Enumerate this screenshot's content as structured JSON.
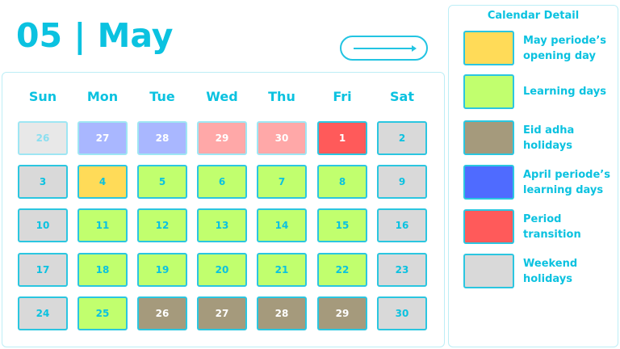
{
  "header": {
    "title": "05 | May",
    "next_button_icon": "arrow-right-icon"
  },
  "weekdays": [
    "Sun",
    "Mon",
    "Tue",
    "Wed",
    "Thu",
    "Fri",
    "Sat"
  ],
  "types": {
    "other_weekend": {
      "bg": "#e8e8e8",
      "fg": "#8adff0",
      "border": "#9ee6f3"
    },
    "april": {
      "bg": "#a9b7ff",
      "fg": "#ffffff",
      "border": "#9ee6f3"
    },
    "transition_prev": {
      "bg": "#ffa8a8",
      "fg": "#ffffff",
      "border": "#9ee6f3"
    },
    "transition": {
      "bg": "#ff5a5a",
      "fg": "#ffffff",
      "border": "#2bc6e0"
    },
    "weekend": {
      "bg": "#d9d9d9",
      "fg": "#0bc2e0",
      "border": "#2bc6e0"
    },
    "opening": {
      "bg": "#ffdb58",
      "fg": "#0bc2e0",
      "border": "#2bc6e0"
    },
    "learning": {
      "bg": "#c1ff6e",
      "fg": "#0bc2e0",
      "border": "#2bc6e0"
    },
    "eid": {
      "bg": "#a59a7c",
      "fg": "#ffffff",
      "border": "#2bc6e0"
    }
  },
  "weeks": [
    [
      {
        "d": "26",
        "t": "other_weekend"
      },
      {
        "d": "27",
        "t": "april"
      },
      {
        "d": "28",
        "t": "april"
      },
      {
        "d": "29",
        "t": "transition_prev"
      },
      {
        "d": "30",
        "t": "transition_prev"
      },
      {
        "d": "1",
        "t": "transition"
      },
      {
        "d": "2",
        "t": "weekend"
      }
    ],
    [
      {
        "d": "3",
        "t": "weekend"
      },
      {
        "d": "4",
        "t": "opening"
      },
      {
        "d": "5",
        "t": "learning"
      },
      {
        "d": "6",
        "t": "learning"
      },
      {
        "d": "7",
        "t": "learning"
      },
      {
        "d": "8",
        "t": "learning"
      },
      {
        "d": "9",
        "t": "weekend"
      }
    ],
    [
      {
        "d": "10",
        "t": "weekend"
      },
      {
        "d": "11",
        "t": "learning"
      },
      {
        "d": "12",
        "t": "learning"
      },
      {
        "d": "13",
        "t": "learning"
      },
      {
        "d": "14",
        "t": "learning"
      },
      {
        "d": "15",
        "t": "learning"
      },
      {
        "d": "16",
        "t": "weekend"
      }
    ],
    [
      {
        "d": "17",
        "t": "weekend"
      },
      {
        "d": "18",
        "t": "learning"
      },
      {
        "d": "19",
        "t": "learning"
      },
      {
        "d": "20",
        "t": "learning"
      },
      {
        "d": "21",
        "t": "learning"
      },
      {
        "d": "22",
        "t": "learning"
      },
      {
        "d": "23",
        "t": "weekend"
      }
    ],
    [
      {
        "d": "24",
        "t": "weekend"
      },
      {
        "d": "25",
        "t": "learning"
      },
      {
        "d": "26",
        "t": "eid"
      },
      {
        "d": "27",
        "t": "eid"
      },
      {
        "d": "28",
        "t": "eid"
      },
      {
        "d": "29",
        "t": "eid"
      },
      {
        "d": "30",
        "t": "weekend"
      }
    ]
  ],
  "legend": {
    "title": "Calendar Detail",
    "items": [
      {
        "label": "May periode’s opening day",
        "color": "#ffdb58"
      },
      {
        "label": "Learning days",
        "color": "#c1ff6e"
      },
      {
        "label": "Eid adha holidays",
        "color": "#a59a7c"
      },
      {
        "label": "April periode’s learning days",
        "color": "#4f6bff"
      },
      {
        "label": "Period transition",
        "color": "#ff5a5a"
      },
      {
        "label": "Weekend holidays",
        "color": "#d9d9d9"
      }
    ]
  }
}
